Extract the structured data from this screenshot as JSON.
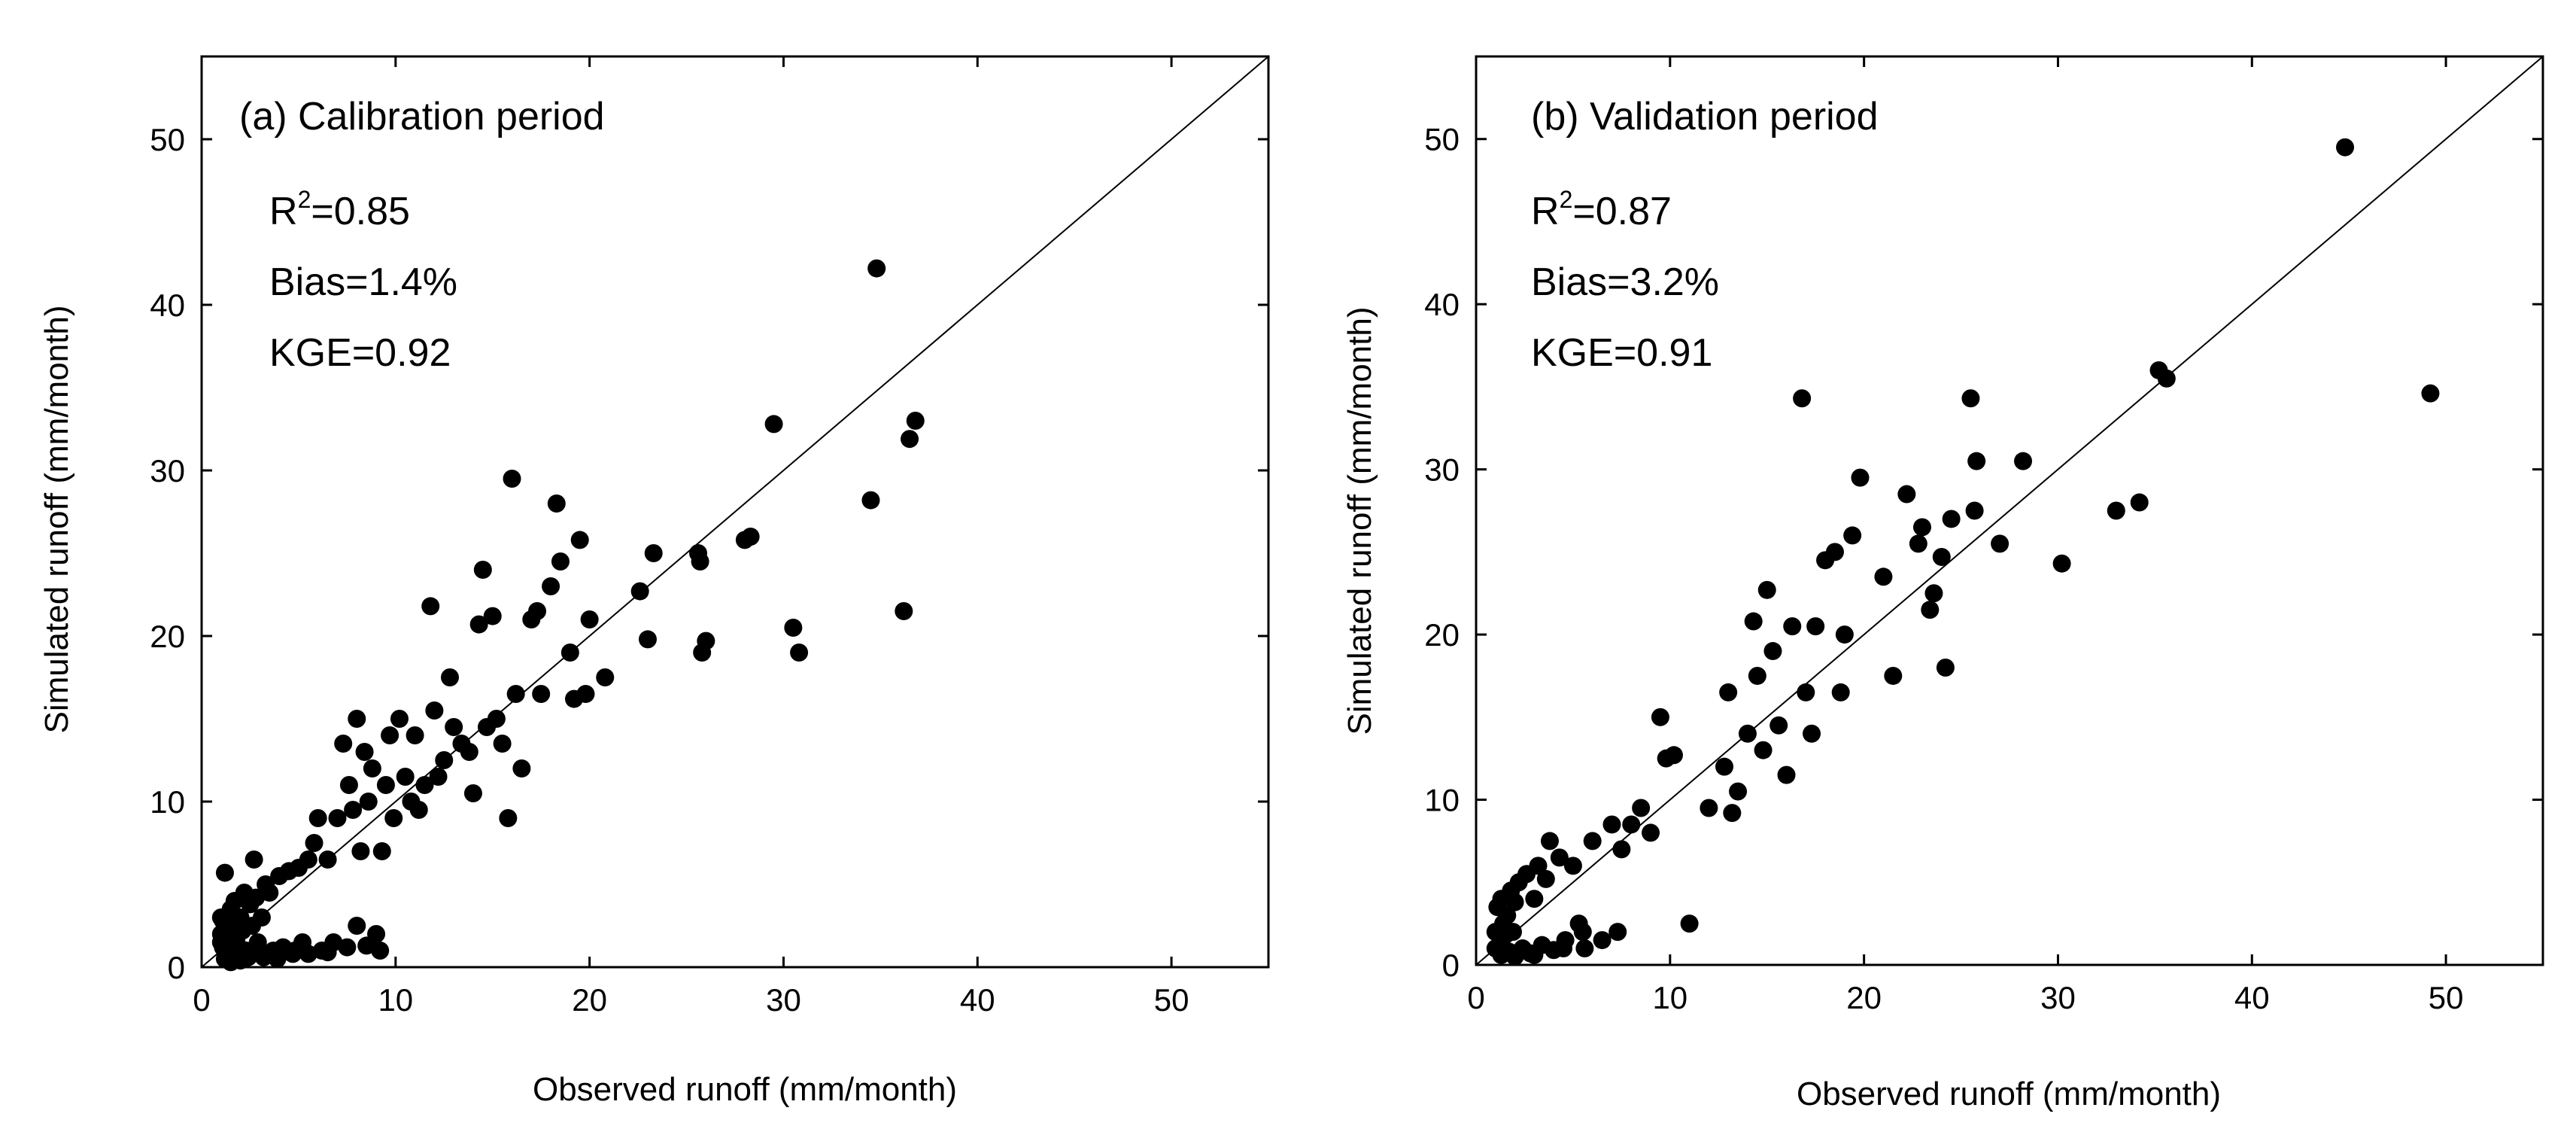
{
  "colors": {
    "point": "#000000",
    "axis": "#000000",
    "one_to_one_line": "#000000",
    "background": "#ffffff"
  },
  "chart_data": [
    {
      "type": "scatter",
      "id": "calibration",
      "title": "(a) Calibration period",
      "xlabel": "Observed runoff (mm/month)",
      "ylabel": "Simulated runoff (mm/month)",
      "xlim": [
        0,
        55
      ],
      "ylim": [
        0,
        55
      ],
      "xticks": [
        0,
        10,
        20,
        30,
        40,
        50
      ],
      "yticks": [
        0,
        10,
        20,
        30,
        40,
        50
      ],
      "reference_line": "1:1",
      "stats": {
        "r2_label": "R",
        "r2_sup": "2",
        "r2_value": "=0.85",
        "bias": "Bias=1.4%",
        "kge": "KGE=0.92"
      },
      "points": [
        [
          1.2,
          5.7
        ],
        [
          1.0,
          3.0
        ],
        [
          1.0,
          2.0
        ],
        [
          1.1,
          1.2
        ],
        [
          1.2,
          0.5
        ],
        [
          1.3,
          2.5
        ],
        [
          1.4,
          1.0
        ],
        [
          1.5,
          3.5
        ],
        [
          1.6,
          2.0
        ],
        [
          1.7,
          4.0
        ],
        [
          1.8,
          1.5
        ],
        [
          1.9,
          0.8
        ],
        [
          2.0,
          3.0
        ],
        [
          2.1,
          2.2
        ],
        [
          2.2,
          4.5
        ],
        [
          2.3,
          1.0
        ],
        [
          2.4,
          0.6
        ],
        [
          2.5,
          3.8
        ],
        [
          2.6,
          2.5
        ],
        [
          2.7,
          6.5
        ],
        [
          2.8,
          4.2
        ],
        [
          2.9,
          1.5
        ],
        [
          3.0,
          0.8
        ],
        [
          3.1,
          3.0
        ],
        [
          3.3,
          5.0
        ],
        [
          3.5,
          4.5
        ],
        [
          3.7,
          1.0
        ],
        [
          3.9,
          0.5
        ],
        [
          4.0,
          5.5
        ],
        [
          4.2,
          1.2
        ],
        [
          4.5,
          5.8
        ],
        [
          4.7,
          0.8
        ],
        [
          5.0,
          6.0
        ],
        [
          5.2,
          1.5
        ],
        [
          5.5,
          6.5
        ],
        [
          5.8,
          7.5
        ],
        [
          6.0,
          9.0
        ],
        [
          6.2,
          1.0
        ],
        [
          6.5,
          6.5
        ],
        [
          6.8,
          1.5
        ],
        [
          7.0,
          9.0
        ],
        [
          7.3,
          13.5
        ],
        [
          7.6,
          11.0
        ],
        [
          7.8,
          9.5
        ],
        [
          8.0,
          15.0
        ],
        [
          8.0,
          2.5
        ],
        [
          8.2,
          7.0
        ],
        [
          8.4,
          13.0
        ],
        [
          8.6,
          10.0
        ],
        [
          8.8,
          12.0
        ],
        [
          9.0,
          2.0
        ],
        [
          9.2,
          1.0
        ],
        [
          9.3,
          7.0
        ],
        [
          9.5,
          11.0
        ],
        [
          9.7,
          14.0
        ],
        [
          9.9,
          9.0
        ],
        [
          10.2,
          15.0
        ],
        [
          10.5,
          11.5
        ],
        [
          10.8,
          10.0
        ],
        [
          11.0,
          14.0
        ],
        [
          11.2,
          9.5
        ],
        [
          11.5,
          11.0
        ],
        [
          11.8,
          21.8
        ],
        [
          12.0,
          15.5
        ],
        [
          12.2,
          11.5
        ],
        [
          12.5,
          12.5
        ],
        [
          12.8,
          17.5
        ],
        [
          13.0,
          14.5
        ],
        [
          13.4,
          13.5
        ],
        [
          13.8,
          13.0
        ],
        [
          14.0,
          10.5
        ],
        [
          14.3,
          20.7
        ],
        [
          14.5,
          24.0
        ],
        [
          14.7,
          14.5
        ],
        [
          15.0,
          21.2
        ],
        [
          15.2,
          15.0
        ],
        [
          15.5,
          13.5
        ],
        [
          15.8,
          9.0
        ],
        [
          16.0,
          29.5
        ],
        [
          16.2,
          16.5
        ],
        [
          16.5,
          12.0
        ],
        [
          17.0,
          21.0
        ],
        [
          17.3,
          21.5
        ],
        [
          17.5,
          16.5
        ],
        [
          18.0,
          23.0
        ],
        [
          18.3,
          28.0
        ],
        [
          18.5,
          24.5
        ],
        [
          19.0,
          19.0
        ],
        [
          19.2,
          16.2
        ],
        [
          19.5,
          25.8
        ],
        [
          19.8,
          16.5
        ],
        [
          20.0,
          21.0
        ],
        [
          20.8,
          17.5
        ],
        [
          22.6,
          22.7
        ],
        [
          23.0,
          19.8
        ],
        [
          23.3,
          25.0
        ],
        [
          25.6,
          25.0
        ],
        [
          25.7,
          24.5
        ],
        [
          25.8,
          19.0
        ],
        [
          26.0,
          19.7
        ],
        [
          28.0,
          25.8
        ],
        [
          28.3,
          26.0
        ],
        [
          29.5,
          32.8
        ],
        [
          30.5,
          20.5
        ],
        [
          30.8,
          19.0
        ],
        [
          34.5,
          28.2
        ],
        [
          34.8,
          42.2
        ],
        [
          36.2,
          21.5
        ],
        [
          36.5,
          31.9
        ],
        [
          36.8,
          33.0
        ],
        [
          1.0,
          1.5
        ],
        [
          1.1,
          2.8
        ],
        [
          1.5,
          0.3
        ],
        [
          2.0,
          0.4
        ],
        [
          2.6,
          1.0
        ],
        [
          3.2,
          0.6
        ],
        [
          4.8,
          1.0
        ],
        [
          5.5,
          0.8
        ],
        [
          6.5,
          0.9
        ],
        [
          7.5,
          1.2
        ],
        [
          8.5,
          1.3
        ]
      ]
    },
    {
      "type": "scatter",
      "id": "validation",
      "title": "(b) Validation period",
      "xlabel": "Observed runoff (mm/month)",
      "ylabel": "Simulated runoff (mm/month)",
      "xlim": [
        0,
        55
      ],
      "ylim": [
        0,
        55
      ],
      "xticks": [
        0,
        10,
        20,
        30,
        40,
        50
      ],
      "yticks": [
        0,
        10,
        20,
        30,
        40,
        50
      ],
      "reference_line": "1:1",
      "stats": {
        "r2_label": "R",
        "r2_sup": "2",
        "r2_value": "=0.87",
        "bias": "Bias=3.2%",
        "kge": "KGE=0.91"
      },
      "points": [
        [
          1.0,
          2.0
        ],
        [
          1.1,
          3.5
        ],
        [
          1.2,
          1.2
        ],
        [
          1.3,
          4.0
        ],
        [
          1.4,
          2.5
        ],
        [
          1.5,
          1.8
        ],
        [
          1.6,
          3.0
        ],
        [
          1.7,
          0.8
        ],
        [
          1.8,
          4.5
        ],
        [
          1.9,
          2.0
        ],
        [
          2.0,
          3.8
        ],
        [
          2.2,
          5.0
        ],
        [
          2.4,
          1.0
        ],
        [
          2.6,
          5.5
        ],
        [
          2.8,
          0.7
        ],
        [
          3.0,
          4.0
        ],
        [
          3.2,
          6.0
        ],
        [
          3.4,
          1.2
        ],
        [
          3.6,
          5.2
        ],
        [
          3.8,
          7.5
        ],
        [
          4.0,
          0.9
        ],
        [
          4.3,
          6.5
        ],
        [
          4.6,
          1.5
        ],
        [
          5.0,
          6.0
        ],
        [
          5.3,
          2.5
        ],
        [
          5.6,
          1.0
        ],
        [
          6.0,
          7.5
        ],
        [
          6.5,
          1.5
        ],
        [
          7.0,
          8.5
        ],
        [
          7.3,
          2.0
        ],
        [
          7.5,
          7.0
        ],
        [
          8.0,
          8.5
        ],
        [
          8.5,
          9.5
        ],
        [
          9.0,
          8.0
        ],
        [
          9.5,
          15.0
        ],
        [
          9.8,
          12.5
        ],
        [
          10.2,
          12.7
        ],
        [
          11.0,
          2.5
        ],
        [
          12.0,
          9.5
        ],
        [
          12.8,
          12.0
        ],
        [
          13.0,
          16.5
        ],
        [
          13.2,
          9.2
        ],
        [
          13.5,
          10.5
        ],
        [
          14.0,
          14.0
        ],
        [
          14.3,
          20.8
        ],
        [
          14.5,
          17.5
        ],
        [
          14.8,
          13.0
        ],
        [
          15.0,
          22.7
        ],
        [
          15.3,
          19.0
        ],
        [
          15.6,
          14.5
        ],
        [
          16.0,
          11.5
        ],
        [
          16.3,
          20.5
        ],
        [
          16.8,
          34.3
        ],
        [
          17.0,
          16.5
        ],
        [
          17.3,
          14.0
        ],
        [
          17.5,
          20.5
        ],
        [
          18.0,
          24.5
        ],
        [
          18.5,
          25.0
        ],
        [
          18.8,
          16.5
        ],
        [
          19.0,
          20.0
        ],
        [
          19.4,
          26.0
        ],
        [
          19.8,
          29.5
        ],
        [
          21.0,
          23.5
        ],
        [
          21.5,
          17.5
        ],
        [
          22.2,
          28.5
        ],
        [
          22.8,
          25.5
        ],
        [
          23.0,
          26.5
        ],
        [
          23.4,
          21.5
        ],
        [
          23.6,
          22.5
        ],
        [
          24.0,
          24.7
        ],
        [
          24.2,
          18.0
        ],
        [
          24.5,
          27.0
        ],
        [
          25.5,
          34.3
        ],
        [
          25.7,
          27.5
        ],
        [
          25.8,
          30.5
        ],
        [
          27.0,
          25.5
        ],
        [
          28.2,
          30.5
        ],
        [
          30.2,
          24.3
        ],
        [
          33.0,
          27.5
        ],
        [
          34.2,
          28.0
        ],
        [
          35.2,
          36.0
        ],
        [
          35.6,
          35.5
        ],
        [
          44.8,
          49.5
        ],
        [
          49.2,
          34.6
        ],
        [
          1.0,
          1.0
        ],
        [
          1.3,
          0.6
        ],
        [
          2.0,
          0.5
        ],
        [
          3.0,
          0.6
        ],
        [
          4.5,
          1.0
        ],
        [
          5.5,
          2.0
        ]
      ]
    }
  ]
}
